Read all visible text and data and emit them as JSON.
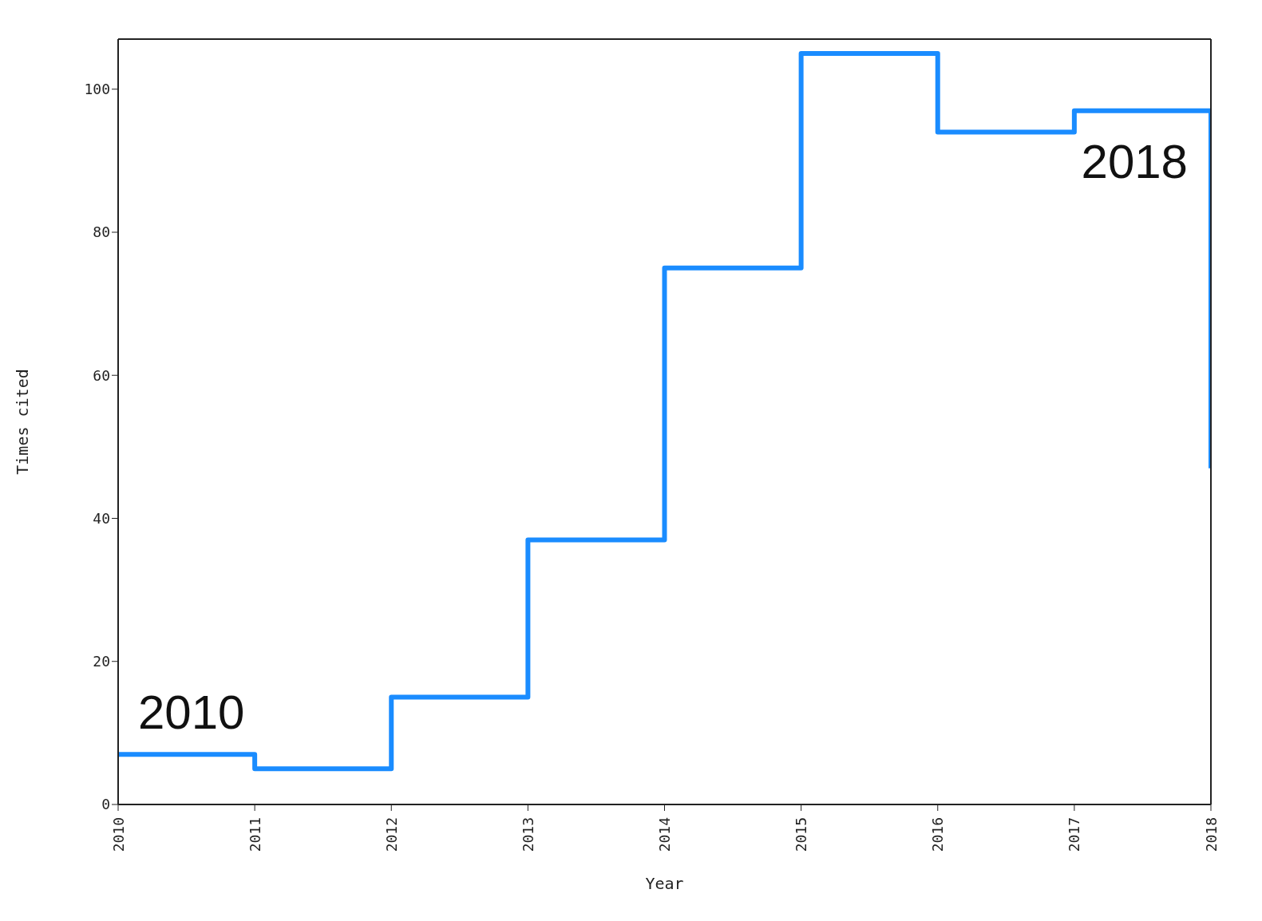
{
  "chart_data": {
    "type": "step",
    "xlabel": "Year",
    "ylabel": "Times cited",
    "x": [
      2010,
      2011,
      2012,
      2013,
      2014,
      2015,
      2016,
      2017,
      2018
    ],
    "series": [
      {
        "color": "#1a8cff",
        "values": [
          7,
          5,
          15,
          37,
          75,
          105,
          94,
          97,
          47
        ]
      }
    ],
    "xlim": [
      2010,
      2018
    ],
    "xticks": [
      2010,
      2011,
      2012,
      2013,
      2014,
      2015,
      2016,
      2017,
      2018
    ],
    "ylim": [
      0,
      107
    ],
    "yticks": [
      0,
      20,
      40,
      60,
      80,
      100
    ],
    "annotations": [
      "2010",
      "2018"
    ],
    "grid": false,
    "marker": "none",
    "line_style": "solid"
  }
}
